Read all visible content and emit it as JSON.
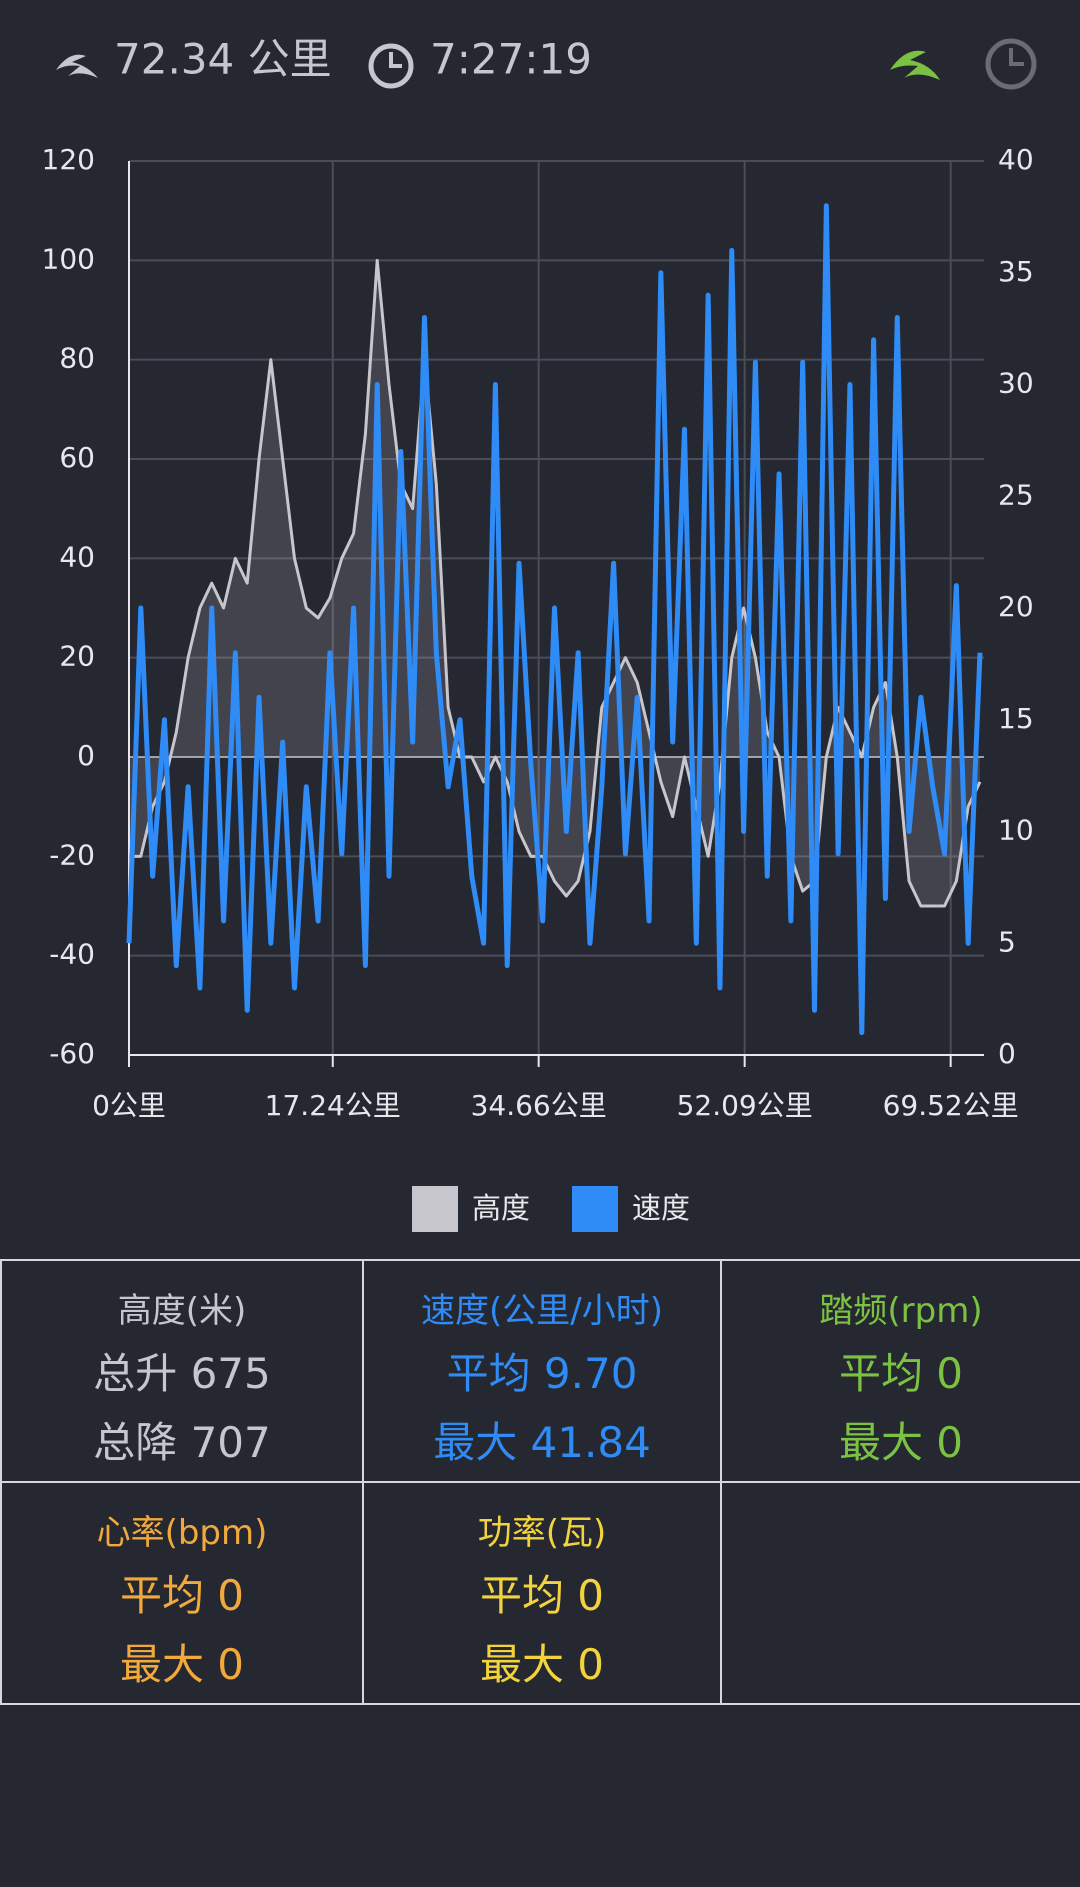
{
  "header": {
    "distance": "72.34 公里",
    "time": "7:27:19"
  },
  "chart_data": {
    "type": "line",
    "x": [
      0,
      1,
      2,
      3,
      4,
      5,
      6,
      7,
      8,
      9,
      10,
      11,
      12,
      13,
      14,
      15,
      16,
      17,
      18,
      19,
      20,
      21,
      22,
      23,
      24,
      25,
      26,
      27,
      28,
      29,
      30,
      31,
      32,
      33,
      34,
      35,
      36,
      37,
      38,
      39,
      40,
      41,
      42,
      43,
      44,
      45,
      46,
      47,
      48,
      49,
      50,
      51,
      52,
      53,
      54,
      55,
      56,
      57,
      58,
      59,
      60,
      61,
      62,
      63,
      64,
      65,
      66,
      67,
      68,
      69,
      70,
      71,
      72
    ],
    "xlim": [
      0,
      72.34
    ],
    "xticks": [
      {
        "value": 0,
        "label": "0公里"
      },
      {
        "value": 17.24,
        "label": "17.24公里"
      },
      {
        "value": 34.66,
        "label": "34.66公里"
      },
      {
        "value": 52.09,
        "label": "52.09公里"
      },
      {
        "value": 69.52,
        "label": "69.52公里"
      }
    ],
    "ylim": [
      -60,
      120
    ],
    "yticks": [
      -60,
      -40,
      -20,
      0,
      20,
      40,
      60,
      80,
      100,
      120
    ],
    "y2lim": [
      0,
      40
    ],
    "y2ticks": [
      0,
      5,
      10,
      15,
      20,
      25,
      30,
      35,
      40
    ],
    "grid": true,
    "series": [
      {
        "name": "高度",
        "color": "#c6c6cc",
        "axis": "y",
        "values": [
          -20,
          -20,
          -10,
          -5,
          5,
          20,
          30,
          35,
          30,
          40,
          35,
          60,
          80,
          60,
          40,
          30,
          28,
          32,
          40,
          45,
          65,
          100,
          75,
          55,
          50,
          80,
          55,
          10,
          0,
          0,
          -5,
          0,
          -5,
          -15,
          -20,
          -20,
          -25,
          -28,
          -25,
          -15,
          10,
          15,
          20,
          15,
          5,
          -5,
          -12,
          0,
          -10,
          -20,
          -5,
          20,
          30,
          20,
          5,
          0,
          -20,
          -27,
          -25,
          0,
          10,
          5,
          0,
          10,
          15,
          0,
          -25,
          -30,
          -30,
          -30,
          -25,
          -10,
          -5
        ]
      },
      {
        "name": "速度",
        "color": "#2f8cf6",
        "axis": "y2",
        "values": [
          5,
          20,
          8,
          15,
          4,
          12,
          3,
          20,
          6,
          18,
          2,
          16,
          5,
          14,
          3,
          12,
          6,
          18,
          9,
          20,
          4,
          30,
          8,
          27,
          14,
          33,
          18,
          12,
          15,
          8,
          5,
          30,
          4,
          22,
          13,
          6,
          20,
          10,
          18,
          5,
          12,
          22,
          9,
          16,
          6,
          35,
          14,
          28,
          5,
          34,
          3,
          36,
          10,
          31,
          8,
          26,
          6,
          31,
          2,
          38,
          9,
          30,
          1,
          32,
          7,
          33,
          10,
          16,
          12,
          9,
          21,
          5,
          18
        ]
      }
    ]
  },
  "stats": [
    {
      "title": "高度(米)",
      "color": "#c6c6cc",
      "lines": [
        "总升 675",
        "总降 707"
      ]
    },
    {
      "title": "速度(公里/小时)",
      "color": "#2f8cf6",
      "lines": [
        "平均 9.70",
        "最大 41.84"
      ]
    },
    {
      "title": "踏频(rpm)",
      "color": "#7cc242",
      "lines": [
        "平均 0",
        "最大 0"
      ]
    },
    {
      "title": "心率(bpm)",
      "color": "#f2a93b",
      "lines": [
        "平均 0",
        "最大 0"
      ]
    },
    {
      "title": "功率(瓦)",
      "color": "#f2d33b",
      "lines": [
        "平均 0",
        "最大 0"
      ]
    }
  ]
}
